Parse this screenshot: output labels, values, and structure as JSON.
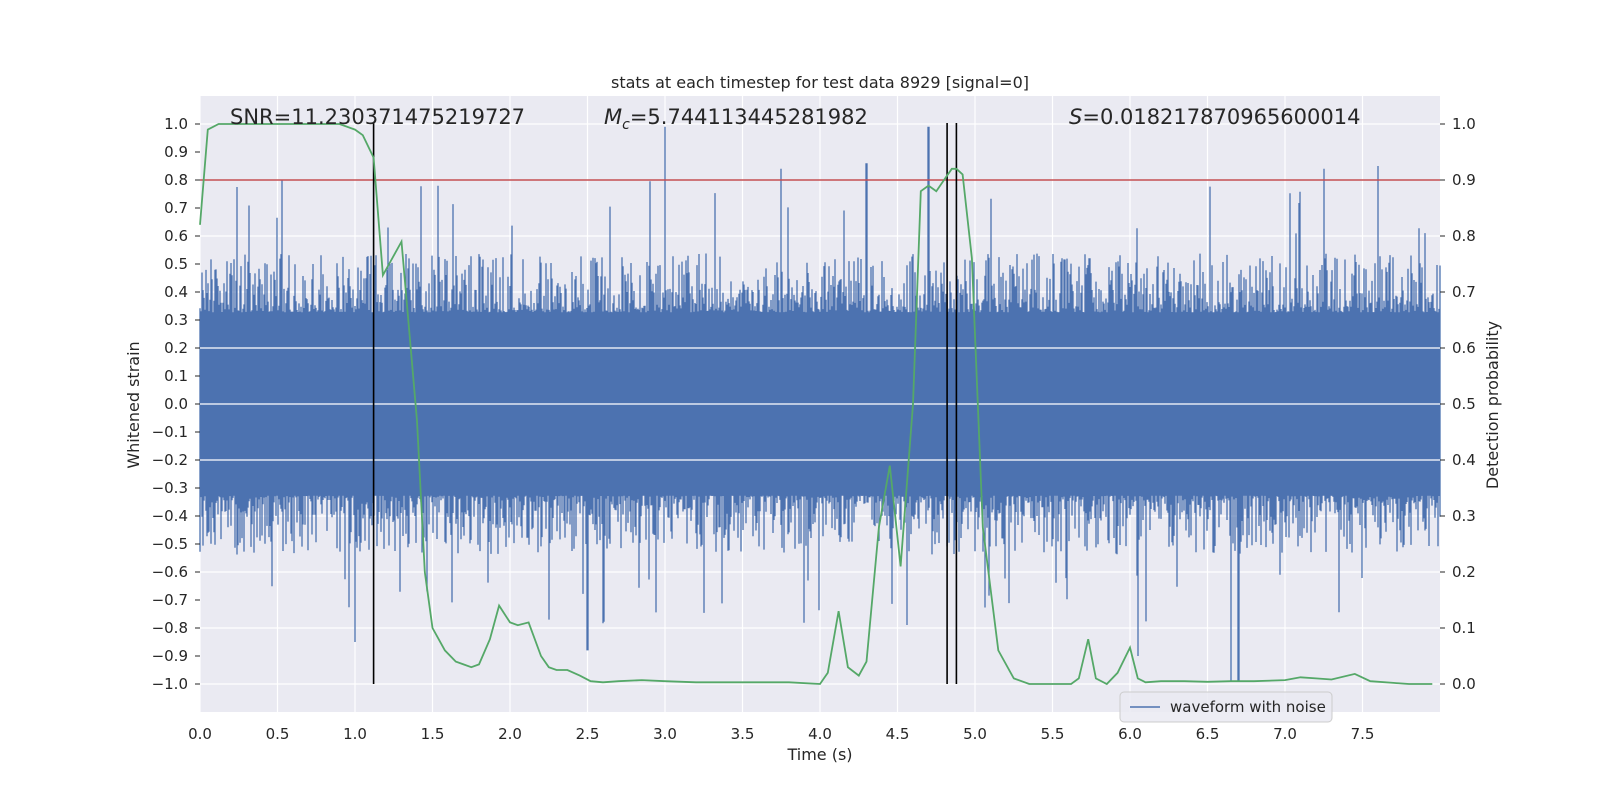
{
  "chart_data": {
    "type": "line",
    "title": "stats at each timestep for test data 8929 [signal=0]",
    "xlabel": "Time (s)",
    "ylabel_left": "Whitened strain",
    "ylabel_right": "Detection probability",
    "xlim": [
      0,
      8
    ],
    "ylim_left": [
      -1.1,
      1.1
    ],
    "ylim_right": [
      -0.05,
      1.05
    ],
    "x_ticks": [
      "0.0",
      "0.5",
      "1.0",
      "1.5",
      "2.0",
      "2.5",
      "3.0",
      "3.5",
      "4.0",
      "4.5",
      "5.0",
      "5.5",
      "6.0",
      "6.5",
      "7.0",
      "7.5"
    ],
    "y_ticks_left": [
      "1.0",
      "0.9",
      "0.8",
      "0.7",
      "0.6",
      "0.5",
      "0.4",
      "0.3",
      "0.2",
      "0.1",
      "0.0",
      "−0.1",
      "−0.2",
      "−0.3",
      "−0.4",
      "−0.5",
      "−0.6",
      "−0.7",
      "−0.8",
      "−0.9",
      "−1.0"
    ],
    "y_ticks_right": [
      "1.0",
      "0.9",
      "0.8",
      "0.7",
      "0.6",
      "0.5",
      "0.4",
      "0.3",
      "0.2",
      "0.1",
      "0.0"
    ],
    "grid": true,
    "legend_location": "bottom-right",
    "annotations": {
      "snr": "SNR=11.230371475219727",
      "mc_symbol": "M",
      "mc_subscript": "c",
      "mc_value": "=5.744113445281982",
      "s_symbol": "S",
      "s_value": "=0.018217870965600014"
    },
    "threshold_line": {
      "y_left": 0.8,
      "color": "#c44e52"
    },
    "vertical_lines_x": [
      1.12,
      4.82,
      4.88
    ],
    "colors": {
      "background": "#eaeaf2",
      "grid": "#ffffff",
      "waveform": "#4c72b0",
      "probability": "#55a868",
      "vlines": "#000000"
    },
    "series": [
      {
        "name": "waveform with noise",
        "axis": "left",
        "kind": "noise-band",
        "envelope_typical_abs": 0.42,
        "notable_peaks": [
          [
            1.0,
            -0.85
          ],
          [
            2.5,
            -0.88
          ],
          [
            3.0,
            0.99
          ],
          [
            3.75,
            0.84
          ],
          [
            4.3,
            0.86
          ],
          [
            4.7,
            0.99
          ],
          [
            6.05,
            -0.9
          ],
          [
            6.65,
            -0.99
          ],
          [
            6.7,
            -0.99
          ],
          [
            7.25,
            0.84
          ],
          [
            7.6,
            0.85
          ]
        ]
      },
      {
        "name": "",
        "axis": "right",
        "x": [
          0.0,
          0.05,
          0.12,
          0.25,
          0.5,
          0.75,
          0.9,
          1.0,
          1.05,
          1.12,
          1.18,
          1.22,
          1.3,
          1.4,
          1.45,
          1.5,
          1.58,
          1.65,
          1.7,
          1.75,
          1.8,
          1.87,
          1.93,
          2.0,
          2.05,
          2.12,
          2.2,
          2.25,
          2.3,
          2.37,
          2.45,
          2.52,
          2.6,
          2.7,
          2.85,
          3.0,
          3.2,
          3.5,
          3.8,
          4.0,
          4.05,
          4.12,
          4.18,
          4.25,
          4.3,
          4.38,
          4.45,
          4.52,
          4.6,
          4.65,
          4.7,
          4.75,
          4.8,
          4.85,
          4.88,
          4.92,
          4.98,
          5.05,
          5.15,
          5.25,
          5.35,
          5.5,
          5.62,
          5.67,
          5.73,
          5.78,
          5.85,
          5.92,
          6.0,
          6.05,
          6.1,
          6.2,
          6.35,
          6.5,
          6.65,
          6.8,
          7.0,
          7.1,
          7.2,
          7.3,
          7.45,
          7.55,
          7.7,
          7.8,
          7.95
        ],
        "values": [
          0.82,
          0.99,
          1.0,
          1.0,
          1.0,
          1.0,
          1.0,
          0.99,
          0.98,
          0.94,
          0.73,
          0.75,
          0.79,
          0.47,
          0.2,
          0.1,
          0.06,
          0.04,
          0.035,
          0.03,
          0.035,
          0.08,
          0.14,
          0.11,
          0.105,
          0.11,
          0.05,
          0.03,
          0.025,
          0.025,
          0.015,
          0.005,
          0.003,
          0.005,
          0.007,
          0.005,
          0.003,
          0.003,
          0.003,
          0.0,
          0.02,
          0.13,
          0.03,
          0.015,
          0.04,
          0.28,
          0.39,
          0.21,
          0.5,
          0.88,
          0.89,
          0.88,
          0.9,
          0.92,
          0.92,
          0.91,
          0.76,
          0.28,
          0.06,
          0.01,
          0.0,
          0.0,
          0.0,
          0.01,
          0.08,
          0.01,
          0.0,
          0.02,
          0.065,
          0.01,
          0.003,
          0.005,
          0.005,
          0.004,
          0.005,
          0.005,
          0.007,
          0.012,
          0.01,
          0.008,
          0.018,
          0.005,
          0.002,
          0.0,
          0.0
        ]
      }
    ]
  }
}
